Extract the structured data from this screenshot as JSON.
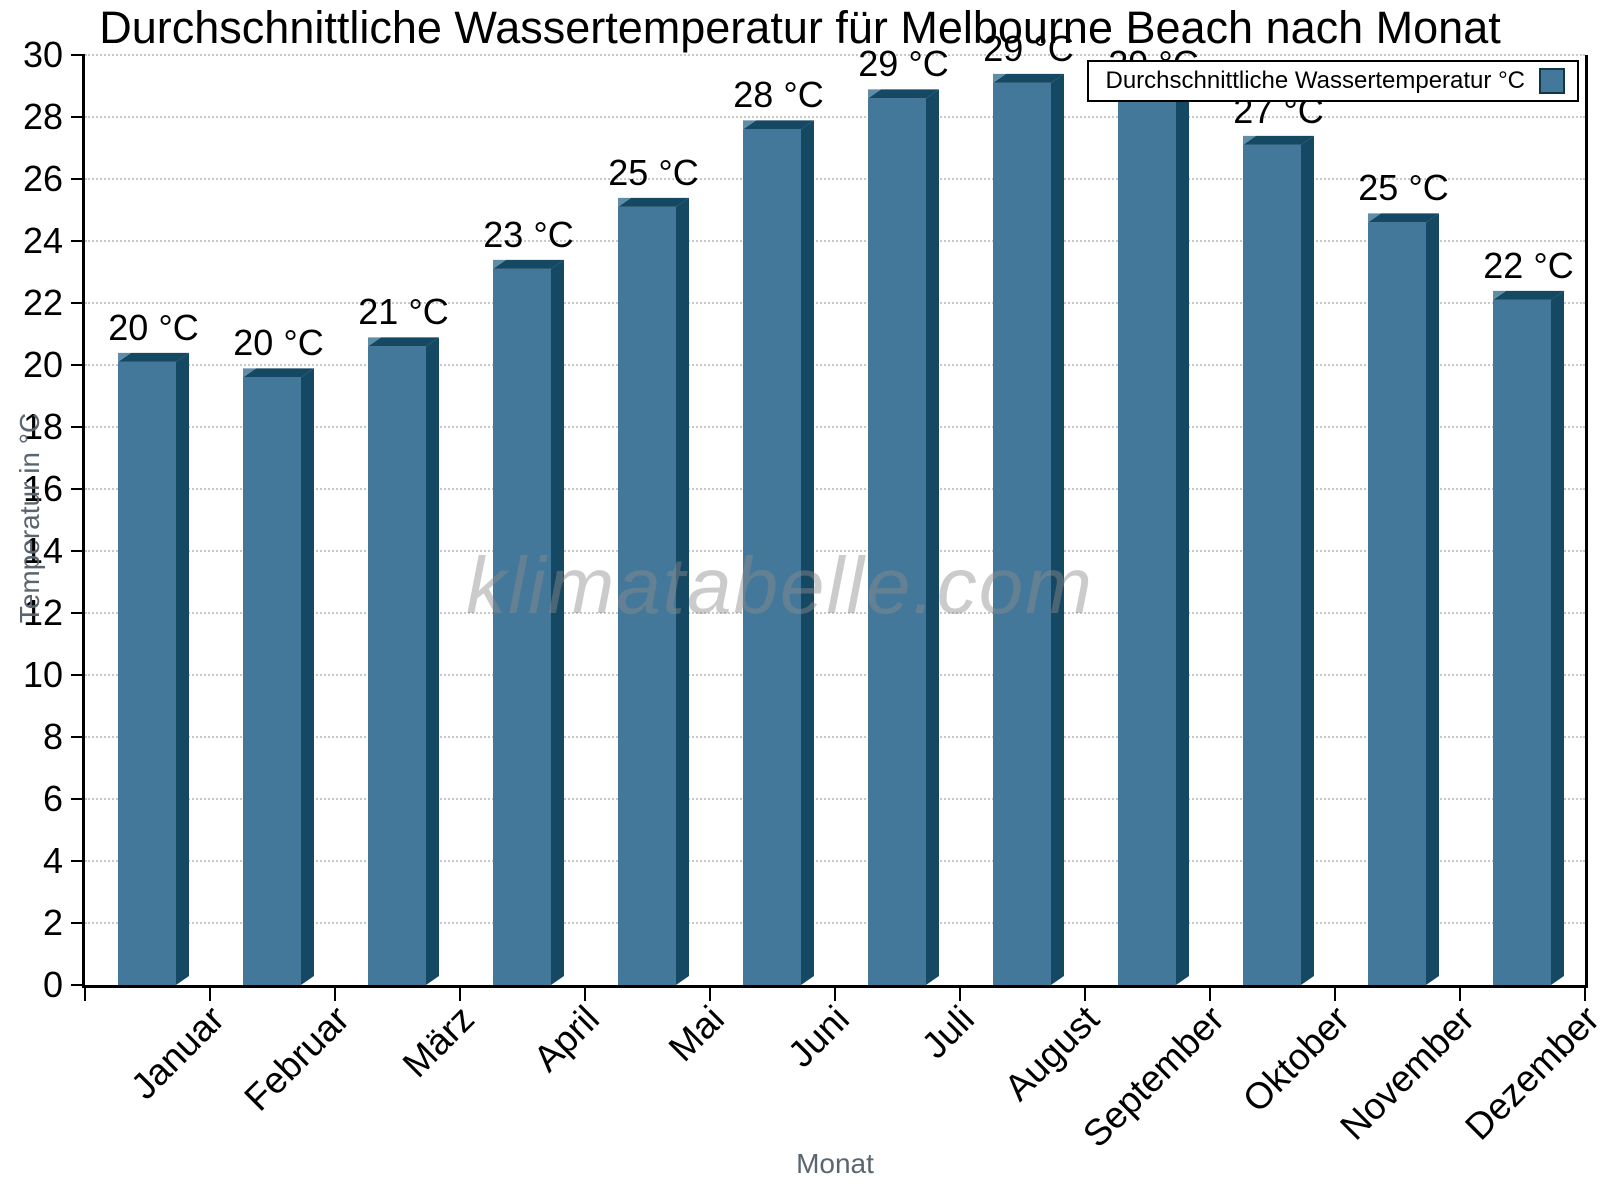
{
  "title": "Durchschnittliche Wassertemperatur für Melbourne Beach nach Monat",
  "watermark": "klimatabelle.com",
  "legend": {
    "label": "Durchschnittliche Wassertemperatur °C",
    "position": "top-right"
  },
  "y_axis": {
    "title": "Temperatur in °C"
  },
  "x_axis": {
    "title": "Monat"
  },
  "chart_data": {
    "type": "bar",
    "title": "Durchschnittliche Wassertemperatur für Melbourne Beach nach Monat",
    "categories": [
      "Januar",
      "Februar",
      "März",
      "April",
      "Mai",
      "Juni",
      "Juli",
      "August",
      "September",
      "Oktober",
      "November",
      "Dezember"
    ],
    "values": [
      20.1,
      19.6,
      20.6,
      23.1,
      25.1,
      27.6,
      28.6,
      29.1,
      28.6,
      27.1,
      24.6,
      22.1
    ],
    "value_labels": [
      "20 °C",
      "20 °C",
      "21 °C",
      "23 °C",
      "25 °C",
      "28 °C",
      "29 °C",
      "29 °C",
      "29 °C",
      "27 °C",
      "25 °C",
      "22 °C"
    ],
    "xlabel": "Monat",
    "ylabel": "Temperatur in °C",
    "ylim": [
      0,
      30
    ],
    "yticks": [
      0,
      2,
      4,
      6,
      8,
      10,
      12,
      14,
      16,
      18,
      20,
      22,
      24,
      26,
      28,
      30
    ],
    "grid": "horizontal-dotted",
    "legend_entries": [
      "Durchschnittliche Wassertemperatur °C"
    ],
    "legend_position": "top-right-inside",
    "colors": {
      "bar_face": "#44789B",
      "bar_depth": "#154862",
      "bar_bevel": "#5F8CA6",
      "grid": "#C9C9C9",
      "axis": "#000000",
      "axis_title_text": "#5A6570",
      "watermark_text": "#8C8C8C"
    }
  }
}
